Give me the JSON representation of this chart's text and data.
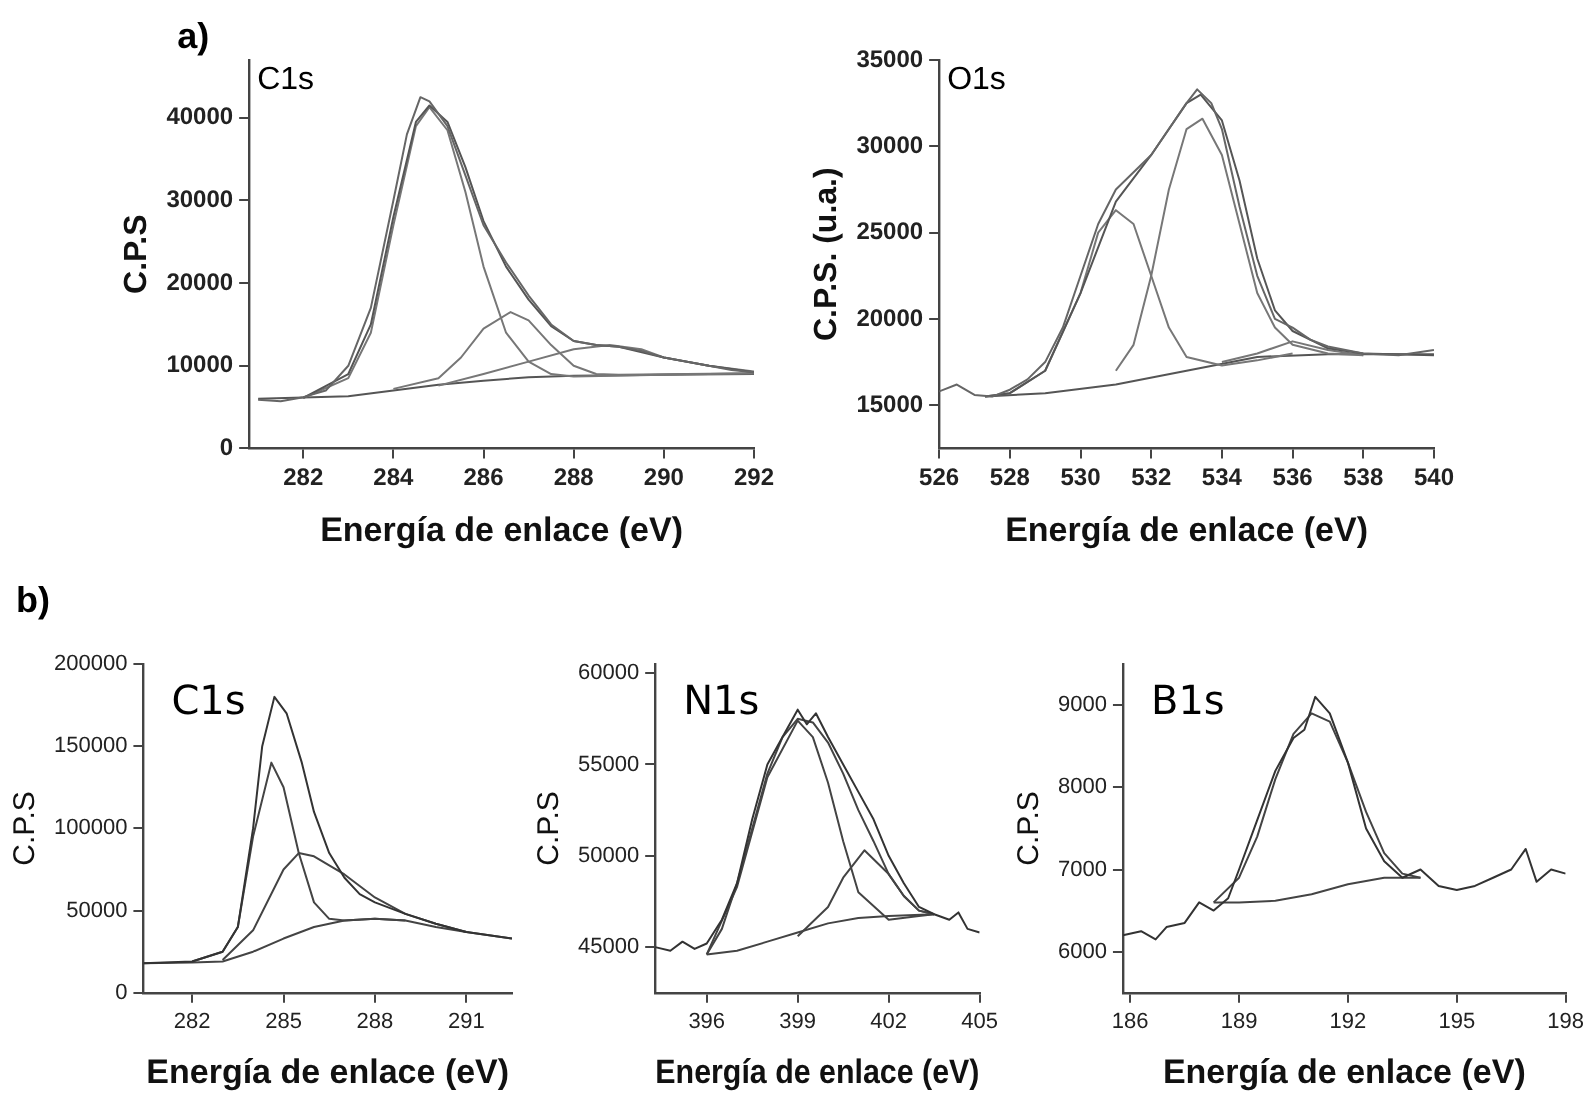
{
  "chart_data": [
    {
      "type": "line",
      "title": "C1s",
      "xlabel": "Energía de enlace (eV)",
      "ylabel": "C.P.S",
      "annotations": [
        "a)"
      ],
      "xlim": [
        280.8,
        292
      ],
      "xticks": [
        282,
        284,
        286,
        288,
        290,
        292
      ],
      "ylim": [
        0,
        47000
      ],
      "yticks": [
        0,
        10000,
        20000,
        30000,
        40000
      ],
      "grid": false,
      "legend": false,
      "marker": "none",
      "series": [
        {
          "color": "#666666",
          "x": [
            281,
            281.5,
            282,
            282.5,
            283,
            283.5,
            284,
            284.3,
            284.6,
            284.8,
            285.2,
            285.6,
            286,
            286.5,
            287,
            287.5,
            288,
            288.5,
            289,
            289.5,
            290,
            290.5,
            291,
            291.5,
            292
          ],
          "values": [
            5900,
            5700,
            6200,
            7000,
            10000,
            17000,
            30000,
            38000,
            42500,
            42000,
            39000,
            33000,
            27000,
            22500,
            18500,
            15000,
            13000,
            12500,
            12300,
            11800,
            11000,
            10500,
            10000,
            9500,
            9200
          ]
        },
        {
          "color": "#555555",
          "x": [
            282,
            283,
            283.5,
            284,
            284.5,
            284.8,
            285.2,
            285.6,
            286,
            286.5,
            287,
            287.5,
            288,
            288.5,
            289,
            290,
            291,
            292
          ],
          "values": [
            6100,
            9000,
            15000,
            28000,
            39500,
            41500,
            39500,
            34000,
            27500,
            22000,
            18000,
            14800,
            13000,
            12500,
            12300,
            11000,
            10000,
            9200
          ]
        },
        {
          "color": "#777777",
          "x": [
            282,
            283,
            283.5,
            284,
            284.5,
            284.8,
            285.2,
            285.6,
            286,
            286.5,
            287,
            287.5,
            288,
            290,
            292
          ],
          "values": [
            6100,
            8500,
            14000,
            27000,
            39000,
            41300,
            38500,
            31000,
            22000,
            14000,
            10500,
            9000,
            8700,
            8900,
            9100
          ]
        },
        {
          "color": "#777777",
          "x": [
            284,
            285,
            285.5,
            286,
            286.6,
            287,
            287.5,
            288,
            288.5,
            289,
            292
          ],
          "values": [
            7200,
            8500,
            11000,
            14500,
            16500,
            15500,
            12500,
            10000,
            9000,
            8900,
            9100
          ]
        },
        {
          "color": "#777777",
          "x": [
            285,
            286,
            287,
            288,
            288.8,
            289.5,
            290,
            291,
            292
          ],
          "values": [
            7600,
            9000,
            10500,
            12000,
            12500,
            12000,
            11000,
            10000,
            9300
          ]
        },
        {
          "color": "#555555",
          "x": [
            281,
            283,
            284,
            285,
            286,
            287,
            288,
            290,
            292
          ],
          "values": [
            6000,
            6300,
            7000,
            7700,
            8200,
            8600,
            8800,
            8900,
            9000
          ]
        }
      ]
    },
    {
      "type": "line",
      "title": "O1s",
      "xlabel": "Energía de enlace (eV)",
      "ylabel": "C.P.S. (u.a.)",
      "xlim": [
        526,
        540
      ],
      "xticks": [
        526,
        528,
        530,
        532,
        534,
        536,
        538,
        540
      ],
      "ylim": [
        12500,
        35000
      ],
      "yticks": [
        15000,
        20000,
        25000,
        30000,
        35000
      ],
      "grid": false,
      "legend": false,
      "marker": "none",
      "series": [
        {
          "color": "#666666",
          "x": [
            526,
            526.5,
            527,
            527.5,
            528,
            528.5,
            529,
            529.5,
            530,
            530.5,
            531,
            531.5,
            532,
            532.5,
            533,
            533.3,
            533.7,
            534,
            534.5,
            535,
            535.5,
            536,
            536.5,
            537,
            538,
            539,
            540
          ],
          "values": [
            15800,
            16200,
            15600,
            15500,
            15900,
            16500,
            17500,
            19500,
            22500,
            25500,
            27500,
            28500,
            29500,
            31000,
            32500,
            33300,
            32500,
            31000,
            26500,
            22500,
            20000,
            19500,
            18800,
            18400,
            18000,
            17900,
            18200
          ]
        },
        {
          "color": "#555555",
          "x": [
            527.3,
            528,
            529,
            530,
            531,
            532,
            533,
            533.4,
            534,
            534.5,
            535,
            535.5,
            536,
            537,
            538,
            540
          ],
          "values": [
            15500,
            15700,
            17000,
            21500,
            26800,
            29500,
            32500,
            33000,
            31500,
            28000,
            23500,
            20500,
            19300,
            18300,
            18000,
            17900
          ]
        },
        {
          "color": "#777777",
          "x": [
            527.3,
            528,
            529,
            530,
            530.5,
            531,
            531.5,
            532,
            532.5,
            533,
            534,
            535,
            536
          ],
          "values": [
            15500,
            15700,
            17000,
            21500,
            25000,
            26300,
            25500,
            22500,
            19500,
            17800,
            17300,
            17600,
            18000
          ]
        },
        {
          "color": "#777777",
          "x": [
            531,
            531.5,
            532,
            532.5,
            533,
            533.45,
            534,
            534.5,
            535,
            535.5,
            536,
            537,
            538
          ],
          "values": [
            17000,
            18500,
            22500,
            27500,
            31000,
            31600,
            29500,
            25500,
            21500,
            19500,
            18500,
            18000,
            17900
          ]
        },
        {
          "color": "#777777",
          "x": [
            534,
            535,
            536,
            537,
            538
          ],
          "values": [
            17500,
            18000,
            18700,
            18200,
            17900
          ]
        },
        {
          "color": "#555555",
          "x": [
            527.3,
            529,
            531,
            533,
            535,
            537,
            540
          ],
          "values": [
            15500,
            15700,
            16200,
            17000,
            17800,
            17950,
            17950
          ]
        }
      ]
    },
    {
      "type": "line",
      "title": "C1s",
      "xlabel": "Energía de enlace (eV)",
      "ylabel": "C.P.S",
      "annotations": [
        "b)"
      ],
      "xlim": [
        280.4,
        292.5
      ],
      "xticks": [
        282,
        285,
        288,
        291
      ],
      "ylim": [
        0,
        200000
      ],
      "yticks": [
        0,
        50000,
        100000,
        150000,
        200000
      ],
      "grid": false,
      "legend": false,
      "marker": "none",
      "series": [
        {
          "color": "#333333",
          "x": [
            280.4,
            282,
            283,
            283.5,
            284,
            284.3,
            284.7,
            285.1,
            285.6,
            286,
            286.5,
            287,
            287.5,
            288,
            289,
            290,
            291,
            292.5
          ],
          "values": [
            18000,
            19000,
            25000,
            40000,
            100000,
            150000,
            180000,
            170000,
            140000,
            110000,
            85000,
            70000,
            60000,
            55000,
            48000,
            42000,
            37000,
            33000
          ]
        },
        {
          "color": "#444444",
          "x": [
            282,
            283,
            283.5,
            284,
            284.6,
            285,
            285.5,
            286,
            286.5,
            287,
            288,
            289
          ],
          "values": [
            19000,
            25000,
            40000,
            95000,
            140000,
            125000,
            85000,
            55000,
            45000,
            44000,
            45000,
            44000
          ]
        },
        {
          "color": "#444444",
          "x": [
            283,
            284,
            285,
            285.5,
            286,
            287,
            288,
            289,
            290,
            291
          ],
          "values": [
            20000,
            38000,
            75000,
            85000,
            83000,
            72000,
            58000,
            48000,
            42000,
            37000
          ]
        },
        {
          "color": "#444444",
          "x": [
            280.4,
            282,
            283,
            284,
            285,
            286,
            287,
            288,
            289,
            290,
            291,
            292.5
          ],
          "values": [
            18000,
            18500,
            19000,
            25000,
            33000,
            40000,
            44000,
            45000,
            44000,
            40000,
            37000,
            33000
          ]
        }
      ]
    },
    {
      "type": "line",
      "title": "N1s",
      "xlabel": "Energía de enlace (eV)",
      "ylabel": "C.P.S",
      "xlim": [
        394.3,
        405
      ],
      "xticks": [
        396,
        399,
        402,
        405
      ],
      "ylim": [
        42500,
        60500
      ],
      "yticks": [
        45000,
        50000,
        55000,
        60000
      ],
      "grid": false,
      "legend": false,
      "marker": "none",
      "series": [
        {
          "color": "#333333",
          "x": [
            394.3,
            394.8,
            395.2,
            395.6,
            396,
            396.5,
            397,
            397.5,
            398,
            398.5,
            399,
            399.3,
            399.6,
            400,
            400.5,
            401,
            401.5,
            402,
            402.5,
            403,
            403.5,
            404,
            404.3,
            404.6,
            405
          ],
          "values": [
            45000,
            44800,
            45300,
            44900,
            45200,
            46500,
            48500,
            52000,
            55000,
            56500,
            58000,
            57200,
            57800,
            56500,
            55000,
            53500,
            52000,
            50000,
            48500,
            47200,
            46800,
            46500,
            46900,
            46000,
            45800
          ]
        },
        {
          "color": "#444444",
          "x": [
            396,
            396.5,
            397,
            397.5,
            398,
            398.5,
            399,
            399.5,
            400,
            400.5,
            401,
            401.5,
            402,
            402.5,
            403,
            403.5
          ],
          "values": [
            44600,
            46000,
            48500,
            51500,
            54500,
            56500,
            57500,
            57300,
            56200,
            54500,
            52500,
            50800,
            49000,
            47800,
            47000,
            46800
          ]
        },
        {
          "color": "#444444",
          "x": [
            396,
            397,
            398,
            399,
            399.5,
            400,
            400.5,
            401,
            402,
            403,
            403.5
          ],
          "values": [
            44600,
            48300,
            54300,
            57400,
            56500,
            54000,
            50800,
            48000,
            46500,
            46700,
            46800
          ]
        },
        {
          "color": "#444444",
          "x": [
            399,
            400,
            400.5,
            401.2,
            402,
            402.5,
            403,
            403.5
          ],
          "values": [
            45600,
            47200,
            48800,
            50300,
            49000,
            47800,
            47000,
            46800
          ]
        },
        {
          "color": "#444444",
          "x": [
            396,
            397,
            398,
            399,
            400,
            401,
            402,
            403.5
          ],
          "values": [
            44600,
            44800,
            45300,
            45800,
            46300,
            46600,
            46700,
            46800
          ]
        }
      ]
    },
    {
      "type": "line",
      "title": "B1s",
      "xlabel": "Energía de enlace (eV)",
      "ylabel": "C.P.S",
      "xlim": [
        185.8,
        198
      ],
      "xticks": [
        186,
        189,
        192,
        195,
        198
      ],
      "ylim": [
        5500,
        9500
      ],
      "yticks": [
        6000,
        7000,
        8000,
        9000
      ],
      "grid": false,
      "legend": false,
      "marker": "none",
      "series": [
        {
          "color": "#333333",
          "x": [
            185.8,
            186.3,
            186.7,
            187,
            187.5,
            187.9,
            188.3,
            188.7,
            189,
            189.5,
            190,
            190.5,
            190.8,
            191.1,
            191.5,
            192,
            192.5,
            193,
            193.5,
            194,
            194.5,
            195,
            195.5,
            196,
            196.5,
            196.9,
            197.2,
            197.6,
            198
          ],
          "values": [
            6200,
            6250,
            6150,
            6300,
            6350,
            6600,
            6500,
            6650,
            7000,
            7600,
            8200,
            8600,
            8700,
            9100,
            8900,
            8300,
            7500,
            7100,
            6900,
            7000,
            6800,
            6750,
            6800,
            6900,
            7000,
            7250,
            6850,
            7000,
            6950
          ]
        },
        {
          "color": "#444444",
          "x": [
            188.3,
            189,
            189.5,
            190,
            190.5,
            191,
            191.5,
            192,
            192.5,
            193,
            193.5,
            194
          ],
          "values": [
            6600,
            6900,
            7400,
            8100,
            8650,
            8900,
            8800,
            8300,
            7700,
            7200,
            6950,
            6900
          ]
        },
        {
          "color": "#444444",
          "x": [
            188.3,
            189,
            190,
            191,
            192,
            193,
            194
          ],
          "values": [
            6600,
            6600,
            6620,
            6700,
            6820,
            6900,
            6900
          ]
        }
      ]
    }
  ]
}
